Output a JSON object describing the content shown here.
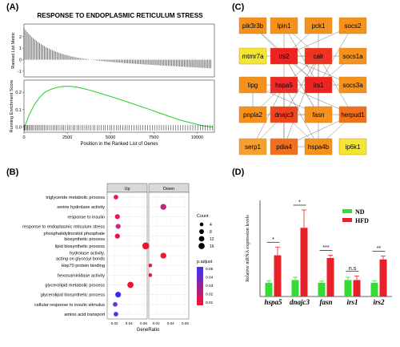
{
  "panel_labels": {
    "a": "(A)",
    "b": "(B)",
    "c": "(C)",
    "d": "(D)"
  },
  "chart_data": [
    {
      "id": "A",
      "type": "line",
      "title": "RESPONSE TO ENDOPLASMIC RETICULUM STRESS",
      "top_ylabel": "Ranked List Metric",
      "bottom_ylabel": "Running Enrichment Score",
      "xlabel": "Position in the Ranked List of Genes",
      "x_ticks": [
        0,
        2500,
        5000,
        7500,
        10000
      ],
      "top_y_ticks": [
        -1,
        0,
        1,
        2
      ],
      "bottom_y_ticks": [
        0.0,
        0.1,
        0.2
      ],
      "xlim": [
        0,
        11000
      ],
      "top_ylim": [
        -1.5,
        3.1
      ],
      "bottom_ylim": [
        -0.03,
        0.27
      ],
      "running_es": {
        "x": [
          0,
          150,
          300,
          600,
          900,
          1200,
          1500,
          1800,
          2100,
          2400,
          2700,
          3000,
          3400,
          3800,
          4200,
          4600,
          5000,
          5400,
          5800,
          6200,
          6600,
          7000,
          7400,
          7800,
          8200,
          8600,
          9000,
          9400,
          9800,
          10200,
          10600,
          10900
        ],
        "y": [
          0.0,
          0.03,
          0.07,
          0.13,
          0.17,
          0.2,
          0.215,
          0.225,
          0.232,
          0.235,
          0.234,
          0.23,
          0.222,
          0.212,
          0.2,
          0.188,
          0.176,
          0.163,
          0.15,
          0.137,
          0.123,
          0.11,
          0.096,
          0.082,
          0.068,
          0.054,
          0.041,
          0.03,
          0.02,
          0.01,
          0.003,
          0.0
        ]
      },
      "colors": {
        "es_line": "#22cc22",
        "metric": "#333333",
        "hit": "#111111"
      }
    },
    {
      "id": "B",
      "type": "scatter",
      "facets": [
        "Up",
        "Down"
      ],
      "xlabel": "GeneRatio",
      "x_ticks": [
        0.02,
        0.04,
        0.06
      ],
      "xlim": [
        0.01,
        0.065
      ],
      "categories": [
        "triglyceride metabolic process",
        "serine hydrolase activity",
        "response to insulin",
        "response to endoplasmic reticulum stress",
        "phosphatidylinositol phosphate\nbiosynthetic process",
        "lipid biosynthetic process",
        "hydrolase activity,\nacting on glycosyl bonds",
        "Hsp70 protein binding",
        "hexosaminidase activity",
        "glycerolipid metabolic process",
        "glycerolipid biosynthetic process",
        "cellular response to insulin stimulus",
        "amino acid transport"
      ],
      "points": [
        {
          "facet": "Up",
          "category": "triglyceride metabolic process",
          "x": 0.022,
          "count": 4,
          "color": "#e8174a"
        },
        {
          "facet": "Down",
          "category": "serine hydrolase activity",
          "x": 0.03,
          "count": 8,
          "color": "#c62480"
        },
        {
          "facet": "Up",
          "category": "response to insulin",
          "x": 0.024,
          "count": 5,
          "color": "#e8174a"
        },
        {
          "facet": "Up",
          "category": "response to endoplasmic reticulum stress",
          "x": 0.025,
          "count": 5,
          "color": "#c42a8a"
        },
        {
          "facet": "Up",
          "category": "phosphatidylinositol phosphate\nbiosynthetic process",
          "x": 0.024,
          "count": 5,
          "color": "#e8174a"
        },
        {
          "facet": "Up",
          "category": "lipid biosynthetic process",
          "x": 0.063,
          "count": 12,
          "color": "#f01030"
        },
        {
          "facet": "Down",
          "category": "hydrolase activity,\nacting on glycosyl bonds",
          "x": 0.03,
          "count": 8,
          "color": "#ee1a3a"
        },
        {
          "facet": "Down",
          "category": "Hsp70 protein binding",
          "x": 0.012,
          "count": 2,
          "color": "#ee1a3a"
        },
        {
          "facet": "Down",
          "category": "hexosaminidase activity",
          "x": 0.012,
          "count": 2,
          "color": "#ee1a3a"
        },
        {
          "facet": "Up",
          "category": "glycerolipid metabolic process",
          "x": 0.042,
          "count": 9,
          "color": "#f01030"
        },
        {
          "facet": "Up",
          "category": "glycerolipid biosynthetic process",
          "x": 0.025,
          "count": 7,
          "color": "#3a2ae6"
        },
        {
          "facet": "Up",
          "category": "cellular response to insulin stimulus",
          "x": 0.021,
          "count": 4,
          "color": "#6a3ad6"
        },
        {
          "facet": "Up",
          "category": "amino acid transport",
          "x": 0.022,
          "count": 4,
          "color": "#5a30dc"
        }
      ],
      "size_legend": {
        "title": "Count",
        "values": [
          4,
          8,
          12,
          16
        ]
      },
      "color_legend": {
        "title": "p.adjust",
        "ticks": [
          "0.05",
          "0.04",
          "0.03",
          "0.02",
          "0.01"
        ],
        "high": "#3333ff",
        "low": "#ff1030"
      }
    },
    {
      "id": "C",
      "type": "network",
      "nodes": [
        {
          "name": "pik3r3b",
          "color": "#f5921e",
          "row": 0,
          "col": 0
        },
        {
          "name": "lpin1",
          "color": "#f5921e",
          "row": 0,
          "col": 1
        },
        {
          "name": "pck1",
          "color": "#f5921e",
          "row": 0,
          "col": 2
        },
        {
          "name": "socs2",
          "color": "#f5921e",
          "row": 0,
          "col": 3
        },
        {
          "name": "mtmr7a",
          "color": "#f3e534",
          "row": 1,
          "col": 0
        },
        {
          "name": "irs2",
          "color": "#ee2222",
          "row": 1,
          "col": 1
        },
        {
          "name": "calr",
          "color": "#ee3322",
          "row": 1,
          "col": 2
        },
        {
          "name": "socs1a",
          "color": "#f5921e",
          "row": 1,
          "col": 3
        },
        {
          "name": "lipg",
          "color": "#f5921e",
          "row": 2,
          "col": 0
        },
        {
          "name": "hspa5",
          "color": "#ee2a2a",
          "row": 2,
          "col": 1
        },
        {
          "name": "irs1",
          "color": "#ee2222",
          "row": 2,
          "col": 2
        },
        {
          "name": "socs3a",
          "color": "#f5921e",
          "row": 2,
          "col": 3
        },
        {
          "name": "pnpla2",
          "color": "#f5921e",
          "row": 3,
          "col": 0
        },
        {
          "name": "dnajc3",
          "color": "#ee4422",
          "row": 3,
          "col": 1
        },
        {
          "name": "fasn",
          "color": "#f5921e",
          "row": 3,
          "col": 2
        },
        {
          "name": "herpud1",
          "color": "#f07020",
          "row": 3,
          "col": 3
        },
        {
          "name": "serp1",
          "color": "#f5a030",
          "row": 4,
          "col": 0
        },
        {
          "name": "pdia4",
          "color": "#f07020",
          "row": 4,
          "col": 1
        },
        {
          "name": "hspa4b",
          "color": "#f5921e",
          "row": 4,
          "col": 2
        },
        {
          "name": "ip6k1",
          "color": "#f3e534",
          "row": 4,
          "col": 3
        }
      ],
      "edges": [
        [
          "pik3r3b",
          "irs2"
        ],
        [
          "pik3r3b",
          "irs1"
        ],
        [
          "lpin1",
          "irs2"
        ],
        [
          "lpin1",
          "irs1"
        ],
        [
          "lpin1",
          "calr"
        ],
        [
          "pck1",
          "irs2"
        ],
        [
          "pck1",
          "irs1"
        ],
        [
          "socs2",
          "irs2"
        ],
        [
          "socs2",
          "irs1"
        ],
        [
          "irs2",
          "irs1"
        ],
        [
          "irs2",
          "calr"
        ],
        [
          "irs2",
          "hspa5"
        ],
        [
          "irs2",
          "socs1a"
        ],
        [
          "irs2",
          "socs3a"
        ],
        [
          "irs2",
          "fasn"
        ],
        [
          "irs1",
          "socs1a"
        ],
        [
          "irs1",
          "socs3a"
        ],
        [
          "irs1",
          "fasn"
        ],
        [
          "irs1",
          "hspa5"
        ],
        [
          "calr",
          "hspa5"
        ],
        [
          "calr",
          "dnajc3"
        ],
        [
          "calr",
          "pdia4"
        ],
        [
          "calr",
          "herpud1"
        ],
        [
          "calr",
          "hspa4b"
        ],
        [
          "hspa5",
          "dnajc3"
        ],
        [
          "hspa5",
          "pdia4"
        ],
        [
          "hspa5",
          "herpud1"
        ],
        [
          "hspa5",
          "hspa4b"
        ],
        [
          "hspa5",
          "serp1"
        ],
        [
          "hspa5",
          "pnpla2"
        ],
        [
          "hspa5",
          "lipg"
        ],
        [
          "dnajc3",
          "pdia4"
        ],
        [
          "dnajc3",
          "herpud1"
        ],
        [
          "dnajc3",
          "hspa4b"
        ],
        [
          "dnajc3",
          "serp1"
        ],
        [
          "pnpla2",
          "lipg"
        ],
        [
          "pnpla2",
          "fasn"
        ],
        [
          "pdia4",
          "herpud1"
        ],
        [
          "pdia4",
          "hspa4b"
        ],
        [
          "fasn",
          "irs2"
        ],
        [
          "herpud1",
          "hspa4b"
        ],
        [
          "mtmr7a",
          "irs2"
        ],
        [
          "lipg",
          "fasn"
        ]
      ]
    },
    {
      "id": "D",
      "type": "bar",
      "ylabel": "Relative mRNA expression levels",
      "categories": [
        "hspa5",
        "dnajc3",
        "fasn",
        "irs1",
        "irs2"
      ],
      "ylim": [
        0,
        7
      ],
      "series": [
        {
          "name": "ND",
          "color": "#33dd33",
          "values": [
            1.0,
            1.2,
            1.0,
            1.2,
            1.0
          ],
          "errors": [
            0.15,
            0.2,
            0.12,
            0.2,
            0.15
          ]
        },
        {
          "name": "HFD",
          "color": "#e8202a",
          "values": [
            3.0,
            5.0,
            2.8,
            1.2,
            2.7
          ],
          "errors": [
            0.6,
            1.3,
            0.2,
            0.3,
            0.25
          ]
        }
      ],
      "significance": [
        "*",
        "*",
        "***",
        "n.s",
        "**"
      ]
    }
  ]
}
